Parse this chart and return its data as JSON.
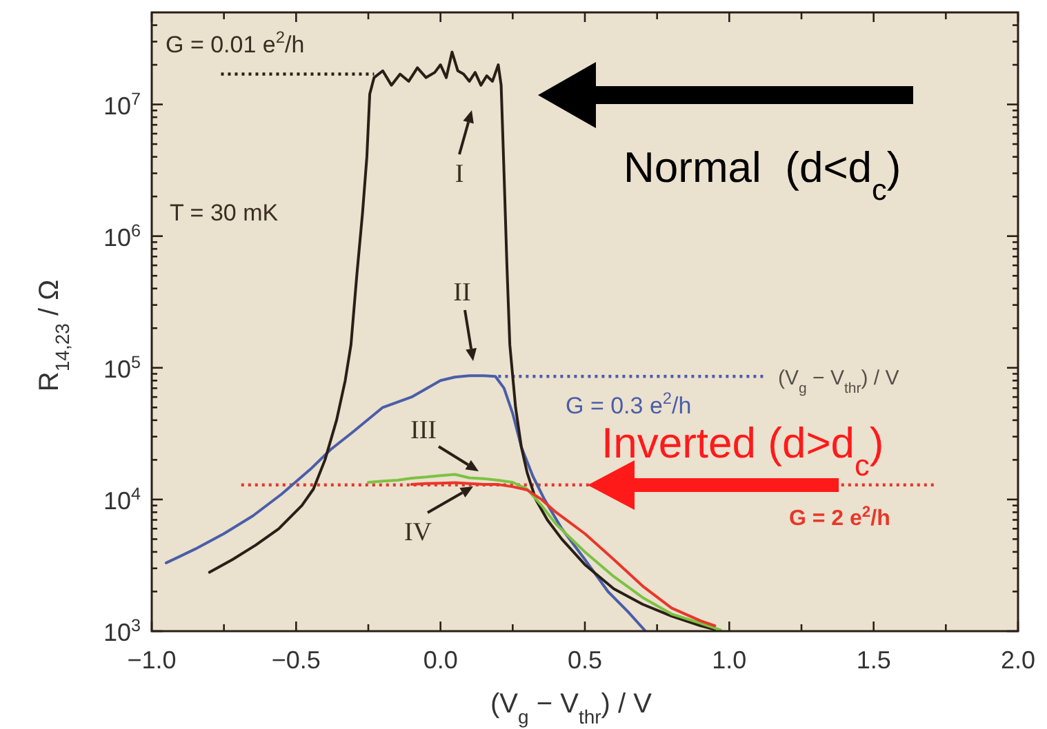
{
  "chart_data": {
    "type": "line",
    "xlabel": "(V$_{g}$ − V$_{thr}$) / V",
    "ylabel": "R$_{14,23}$ / Ω",
    "log": "y",
    "line_style": "solid",
    "marker": "none",
    "xlim": [
      -1,
      2
    ],
    "ylim": [
      1000,
      50000000
    ],
    "xticks": [
      {
        "value": -1,
        "label": "−1.0"
      },
      {
        "value": -0.75,
        "label": null
      },
      {
        "value": -0.5,
        "label": "−0.5"
      },
      {
        "value": -0.25,
        "label": null
      },
      {
        "value": 0,
        "label": "0.0"
      },
      {
        "value": 0.25,
        "label": null
      },
      {
        "value": 0.5,
        "label": "0.5"
      },
      {
        "value": 0.75,
        "label": null
      },
      {
        "value": 1,
        "label": "1.0"
      },
      {
        "value": 1.25,
        "label": null
      },
      {
        "value": 1.5,
        "label": "1.5"
      },
      {
        "value": 1.75,
        "label": null
      },
      {
        "value": 2,
        "label": "2.0"
      }
    ],
    "yticks": [
      {
        "value": 1000,
        "label": "10$^{3}$"
      },
      {
        "value": 2000,
        "label": null
      },
      {
        "value": 3000,
        "label": null
      },
      {
        "value": 4000,
        "label": null
      },
      {
        "value": 5000,
        "label": null
      },
      {
        "value": 6000,
        "label": null
      },
      {
        "value": 7000,
        "label": null
      },
      {
        "value": 8000,
        "label": null
      },
      {
        "value": 9000,
        "label": null
      },
      {
        "value": 10000,
        "label": "10$^{4}$"
      },
      {
        "value": 20000,
        "label": null
      },
      {
        "value": 30000,
        "label": null
      },
      {
        "value": 40000,
        "label": null
      },
      {
        "value": 50000,
        "label": null
      },
      {
        "value": 60000,
        "label": null
      },
      {
        "value": 70000,
        "label": null
      },
      {
        "value": 80000,
        "label": null
      },
      {
        "value": 90000,
        "label": null
      },
      {
        "value": 100000,
        "label": "10$^{5}$"
      },
      {
        "value": 200000,
        "label": null
      },
      {
        "value": 300000,
        "label": null
      },
      {
        "value": 400000,
        "label": null
      },
      {
        "value": 500000,
        "label": null
      },
      {
        "value": 600000,
        "label": null
      },
      {
        "value": 700000,
        "label": null
      },
      {
        "value": 800000,
        "label": null
      },
      {
        "value": 900000,
        "label": null
      },
      {
        "value": 1000000,
        "label": "10$^{6}$"
      },
      {
        "value": 2000000,
        "label": null
      },
      {
        "value": 3000000,
        "label": null
      },
      {
        "value": 4000000,
        "label": null
      },
      {
        "value": 5000000,
        "label": null
      },
      {
        "value": 6000000,
        "label": null
      },
      {
        "value": 7000000,
        "label": null
      },
      {
        "value": 8000000,
        "label": null
      },
      {
        "value": 9000000,
        "label": null
      },
      {
        "value": 10000000,
        "label": "10$^{7}$"
      },
      {
        "value": 20000000,
        "label": null
      },
      {
        "value": 30000000,
        "label": null
      },
      {
        "value": 40000000,
        "label": null
      }
    ],
    "series": [
      {
        "type": "line",
        "line_style": "dotted",
        "color": "#2a1f16",
        "x": [
          -0.76,
          -0.23
        ],
        "values": [
          17000000,
          17000000
        ]
      },
      {
        "type": "line",
        "line_style": "dotted",
        "color": "#4a5ea8",
        "x": [
          0.2,
          1.12
        ],
        "values": [
          86000,
          86000
        ]
      },
      {
        "type": "line",
        "line_style": "dotted",
        "color": "#e8372a",
        "x": [
          -0.69,
          1.72
        ],
        "values": [
          12900,
          12900
        ]
      },
      {
        "type": "line",
        "color": "#4a5ea8",
        "x": [
          -0.95,
          -0.85,
          -0.75,
          -0.65,
          -0.55,
          -0.45,
          -0.38,
          -0.3,
          -0.2,
          -0.1,
          0.0,
          0.05,
          0.1,
          0.15,
          0.19,
          0.22,
          0.25,
          0.28,
          0.32,
          0.36,
          0.42,
          0.5,
          0.58,
          0.65,
          0.71
        ],
        "values": [
          3300,
          4200,
          5500,
          7500,
          11000,
          17000,
          24000,
          33000,
          50000,
          60000,
          80000,
          85000,
          87000,
          87000,
          86000,
          70000,
          45000,
          25000,
          15000,
          10000,
          6000,
          3500,
          2000,
          1400,
          1000
        ]
      },
      {
        "type": "line",
        "color": "#2a1f16",
        "x": [
          -0.8,
          -0.72,
          -0.64,
          -0.56,
          -0.48,
          -0.44,
          -0.4,
          -0.36,
          -0.33,
          -0.31,
          -0.29,
          -0.27,
          -0.255,
          -0.245,
          -0.23,
          -0.2,
          -0.17,
          -0.14,
          -0.11,
          -0.08,
          -0.05,
          -0.02,
          0.0,
          0.02,
          0.04,
          0.06,
          0.08,
          0.1,
          0.12,
          0.14,
          0.16,
          0.18,
          0.2,
          0.21,
          0.22,
          0.23,
          0.24,
          0.26,
          0.28,
          0.3,
          0.33,
          0.37,
          0.42,
          0.5,
          0.6,
          0.7,
          0.8,
          0.9,
          0.95
        ],
        "values": [
          2800,
          3500,
          4500,
          6000,
          9000,
          12000,
          20000,
          40000,
          80000,
          150000,
          500000,
          1500000,
          4000000,
          12000000,
          16000000,
          18000000,
          14000000,
          17000000,
          15000000,
          19000000,
          16000000,
          17500000,
          20000000,
          16000000,
          25000000,
          18000000,
          17000000,
          15000000,
          17500000,
          14000000,
          16500000,
          15000000,
          20000000,
          14000000,
          3000000,
          600000,
          150000,
          50000,
          25000,
          16000,
          10000,
          7000,
          5000,
          3200,
          2100,
          1600,
          1300,
          1100,
          1030
        ]
      },
      {
        "type": "line",
        "color": "#7cc242",
        "x": [
          -0.25,
          -0.2,
          -0.15,
          -0.1,
          -0.05,
          0.0,
          0.05,
          0.1,
          0.15,
          0.2,
          0.25,
          0.3,
          0.35,
          0.4,
          0.5,
          0.6,
          0.7,
          0.8,
          0.9,
          0.97
        ],
        "values": [
          13500,
          13800,
          14000,
          14500,
          14800,
          15200,
          15500,
          14600,
          14400,
          14000,
          13500,
          12000,
          9000,
          6500,
          4000,
          2600,
          1800,
          1350,
          1150,
          1020
        ]
      },
      {
        "type": "line",
        "color": "#e8372a",
        "x": [
          -0.1,
          -0.05,
          0.0,
          0.05,
          0.1,
          0.15,
          0.2,
          0.25,
          0.3,
          0.35,
          0.4,
          0.5,
          0.6,
          0.7,
          0.8,
          0.9,
          0.95
        ],
        "values": [
          13000,
          13200,
          13300,
          13400,
          13200,
          13000,
          13000,
          12500,
          11800,
          10000,
          8000,
          5500,
          3500,
          2200,
          1500,
          1200,
          1100
        ]
      }
    ],
    "annotations": [
      "G = 0.01 e$^{2}$/h",
      "T = 30 mK",
      "I",
      "II",
      "III",
      "IV",
      "(V$_{g}$ − V$_{thr}$) / V",
      "G = 0.3 e$^{2}$/h",
      "Normal  (d<d$_{c}$)",
      "Inverted (d>d$_{c}$)",
      "G = 2 e$^{2}$/h"
    ]
  }
}
